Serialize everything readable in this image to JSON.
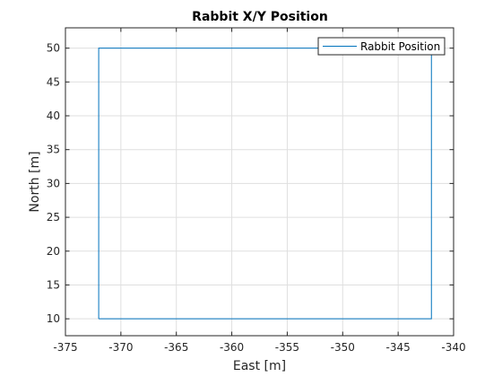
{
  "chart_data": {
    "type": "line",
    "title": "Rabbit X/Y Position",
    "xlabel": "East [m]",
    "ylabel": "North [m]",
    "xlim": [
      -375,
      -340
    ],
    "ylim": [
      7.5,
      53
    ],
    "xticks": [
      -375,
      -370,
      -365,
      -360,
      -355,
      -350,
      -345,
      -340
    ],
    "yticks": [
      10,
      15,
      20,
      25,
      30,
      35,
      40,
      45,
      50
    ],
    "grid": true,
    "legend_location": "top-right",
    "series": [
      {
        "name": "Rabbit Position",
        "color": "#0072BD",
        "x": [
          -372,
          -342,
          -342,
          -372,
          -372
        ],
        "y": [
          10,
          10,
          50,
          50,
          10
        ]
      }
    ]
  }
}
